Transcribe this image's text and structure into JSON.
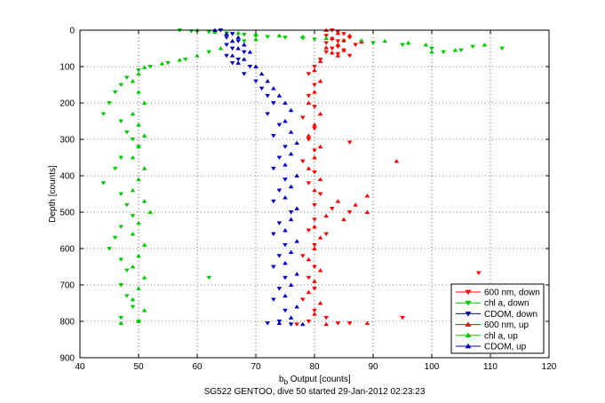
{
  "chart_data": {
    "type": "scatter",
    "title": "",
    "xlabel_main": "b",
    "xlabel_sub": "b",
    "xlabel_rest": " Output [counts]",
    "ylabel": "Depth [counts]",
    "caption": "SG522 GENTOO, dive 50 started 29-Jan-2012 02:23:23",
    "xlim": [
      40,
      120
    ],
    "ylim": [
      0,
      900
    ],
    "y_reversed": true,
    "grid": "dotted",
    "legend_position": "bottom-right",
    "xticks": [
      40,
      50,
      60,
      70,
      80,
      90,
      100,
      110,
      120
    ],
    "yticks": [
      0,
      100,
      200,
      300,
      400,
      500,
      600,
      700,
      800,
      900
    ],
    "series": [
      {
        "name": "600 nm, down",
        "color": "#ff0000",
        "marker": "triangle-down",
        "points": [
          [
            83,
            0
          ],
          [
            84,
            5
          ],
          [
            85,
            10
          ],
          [
            82,
            15
          ],
          [
            86,
            20
          ],
          [
            83,
            25
          ],
          [
            84,
            30
          ],
          [
            82,
            35
          ],
          [
            87,
            40
          ],
          [
            84,
            45
          ],
          [
            83,
            50
          ],
          [
            85,
            55
          ],
          [
            82,
            60
          ],
          [
            84,
            65
          ],
          [
            86,
            70
          ],
          [
            81,
            80
          ],
          [
            80,
            100
          ],
          [
            79,
            120
          ],
          [
            80,
            150
          ],
          [
            79,
            180
          ],
          [
            80,
            210
          ],
          [
            78,
            240
          ],
          [
            80,
            270
          ],
          [
            79,
            300
          ],
          [
            86,
            308
          ],
          [
            80,
            330
          ],
          [
            78,
            360
          ],
          [
            80,
            390
          ],
          [
            79,
            420
          ],
          [
            81,
            450
          ],
          [
            80,
            480
          ],
          [
            83,
            490
          ],
          [
            86,
            500
          ],
          [
            80,
            520
          ],
          [
            79,
            550
          ],
          [
            82,
            560
          ],
          [
            80,
            590
          ],
          [
            78,
            620
          ],
          [
            80,
            650
          ],
          [
            79,
            680
          ],
          [
            108,
            667
          ],
          [
            80,
            710
          ],
          [
            78,
            740
          ],
          [
            80,
            770
          ],
          [
            82,
            790
          ],
          [
            95,
            790
          ],
          [
            79,
            800
          ],
          [
            84,
            805
          ],
          [
            86,
            805
          ],
          [
            77,
            808
          ]
        ]
      },
      {
        "name": "chl a, down",
        "color": "#00cc00",
        "marker": "triangle-down",
        "points": [
          [
            57,
            0
          ],
          [
            59,
            3
          ],
          [
            62,
            5
          ],
          [
            65,
            8
          ],
          [
            68,
            12
          ],
          [
            70,
            15
          ],
          [
            72,
            18
          ],
          [
            75,
            20
          ],
          [
            78,
            22
          ],
          [
            80,
            25
          ],
          [
            85,
            30
          ],
          [
            90,
            35
          ],
          [
            95,
            40
          ],
          [
            100,
            50
          ],
          [
            105,
            55
          ],
          [
            112,
            50
          ],
          [
            107,
            45
          ],
          [
            102,
            60
          ],
          [
            68,
            30
          ],
          [
            62,
            60
          ],
          [
            58,
            80
          ],
          [
            55,
            90
          ],
          [
            52,
            100
          ],
          [
            50,
            110
          ],
          [
            48,
            130
          ],
          [
            47,
            150
          ],
          [
            46,
            170
          ],
          [
            45,
            200
          ],
          [
            44,
            230
          ],
          [
            47,
            250
          ],
          [
            48,
            280
          ],
          [
            49,
            300
          ],
          [
            50,
            320
          ],
          [
            47,
            350
          ],
          [
            46,
            380
          ],
          [
            44,
            420
          ],
          [
            47,
            450
          ],
          [
            48,
            480
          ],
          [
            49,
            510
          ],
          [
            47,
            540
          ],
          [
            46,
            570
          ],
          [
            45,
            600
          ],
          [
            47,
            630
          ],
          [
            48,
            660
          ],
          [
            62,
            680
          ],
          [
            47,
            700
          ],
          [
            48,
            730
          ],
          [
            49,
            760
          ],
          [
            47,
            790
          ],
          [
            50,
            800
          ]
        ]
      },
      {
        "name": "CDOM, down",
        "color": "#0000cc",
        "marker": "triangle-down",
        "points": [
          [
            64,
            0
          ],
          [
            66,
            10
          ],
          [
            65,
            20
          ],
          [
            67,
            30
          ],
          [
            65,
            40
          ],
          [
            66,
            50
          ],
          [
            68,
            60
          ],
          [
            65,
            70
          ],
          [
            67,
            80
          ],
          [
            66,
            90
          ],
          [
            69,
            100
          ],
          [
            68,
            120
          ],
          [
            70,
            140
          ],
          [
            71,
            160
          ],
          [
            72,
            180
          ],
          [
            73,
            200
          ],
          [
            72,
            230
          ],
          [
            74,
            260
          ],
          [
            73,
            290
          ],
          [
            75,
            320
          ],
          [
            74,
            350
          ],
          [
            73,
            380
          ],
          [
            75,
            410
          ],
          [
            74,
            440
          ],
          [
            73,
            470
          ],
          [
            76,
            500
          ],
          [
            74,
            530
          ],
          [
            73,
            560
          ],
          [
            75,
            590
          ],
          [
            74,
            620
          ],
          [
            73,
            650
          ],
          [
            75,
            680
          ],
          [
            74,
            710
          ],
          [
            73,
            740
          ],
          [
            75,
            770
          ],
          [
            74,
            800
          ],
          [
            72,
            805
          ],
          [
            76,
            808
          ]
        ]
      },
      {
        "name": "600 nm, up",
        "color": "#ff0000",
        "marker": "triangle-up",
        "points": [
          [
            82,
            0
          ],
          [
            84,
            8
          ],
          [
            86,
            15
          ],
          [
            83,
            22
          ],
          [
            85,
            28
          ],
          [
            88,
            32
          ],
          [
            84,
            40
          ],
          [
            82,
            48
          ],
          [
            85,
            55
          ],
          [
            83,
            62
          ],
          [
            84,
            70
          ],
          [
            81,
            85
          ],
          [
            80,
            110
          ],
          [
            81,
            140
          ],
          [
            80,
            170
          ],
          [
            79,
            200
          ],
          [
            81,
            230
          ],
          [
            80,
            260
          ],
          [
            79,
            290
          ],
          [
            81,
            320
          ],
          [
            80,
            350
          ],
          [
            94,
            360
          ],
          [
            79,
            380
          ],
          [
            81,
            410
          ],
          [
            80,
            440
          ],
          [
            89,
            455
          ],
          [
            84,
            470
          ],
          [
            87,
            480
          ],
          [
            89,
            500
          ],
          [
            82,
            510
          ],
          [
            85,
            520
          ],
          [
            80,
            540
          ],
          [
            81,
            570
          ],
          [
            80,
            600
          ],
          [
            79,
            630
          ],
          [
            81,
            660
          ],
          [
            80,
            690
          ],
          [
            79,
            720
          ],
          [
            81,
            750
          ],
          [
            80,
            780
          ],
          [
            89,
            805
          ],
          [
            82,
            808
          ]
        ]
      },
      {
        "name": "chl a, up",
        "color": "#00cc00",
        "marker": "triangle-up",
        "points": [
          [
            60,
            0
          ],
          [
            63,
            5
          ],
          [
            67,
            8
          ],
          [
            70,
            12
          ],
          [
            74,
            15
          ],
          [
            78,
            18
          ],
          [
            82,
            22
          ],
          [
            88,
            28
          ],
          [
            92,
            30
          ],
          [
            96,
            35
          ],
          [
            99,
            40
          ],
          [
            104,
            55
          ],
          [
            109,
            40
          ],
          [
            100,
            60
          ],
          [
            70,
            25
          ],
          [
            64,
            50
          ],
          [
            60,
            70
          ],
          [
            57,
            82
          ],
          [
            54,
            92
          ],
          [
            51,
            102
          ],
          [
            50,
            120
          ],
          [
            49,
            140
          ],
          [
            50,
            170
          ],
          [
            51,
            200
          ],
          [
            49,
            230
          ],
          [
            50,
            260
          ],
          [
            51,
            290
          ],
          [
            50,
            320
          ],
          [
            49,
            350
          ],
          [
            51,
            380
          ],
          [
            50,
            410
          ],
          [
            49,
            440
          ],
          [
            51,
            470
          ],
          [
            52,
            500
          ],
          [
            50,
            530
          ],
          [
            49,
            560
          ],
          [
            51,
            590
          ],
          [
            50,
            620
          ],
          [
            49,
            650
          ],
          [
            51,
            680
          ],
          [
            50,
            710
          ],
          [
            49,
            740
          ],
          [
            51,
            770
          ],
          [
            50,
            800
          ],
          [
            47,
            805
          ]
        ]
      },
      {
        "name": "CDOM, up",
        "color": "#0000cc",
        "marker": "triangle-up",
        "points": [
          [
            63,
            0
          ],
          [
            65,
            10
          ],
          [
            67,
            20
          ],
          [
            66,
            30
          ],
          [
            68,
            40
          ],
          [
            67,
            50
          ],
          [
            69,
            60
          ],
          [
            66,
            70
          ],
          [
            68,
            80
          ],
          [
            67,
            90
          ],
          [
            70,
            100
          ],
          [
            71,
            120
          ],
          [
            72,
            140
          ],
          [
            73,
            160
          ],
          [
            74,
            180
          ],
          [
            75,
            200
          ],
          [
            76,
            220
          ],
          [
            75,
            250
          ],
          [
            76,
            280
          ],
          [
            77,
            310
          ],
          [
            76,
            340
          ],
          [
            75,
            370
          ],
          [
            77,
            400
          ],
          [
            76,
            430
          ],
          [
            75,
            460
          ],
          [
            77,
            490
          ],
          [
            76,
            520
          ],
          [
            75,
            550
          ],
          [
            77,
            580
          ],
          [
            76,
            610
          ],
          [
            75,
            640
          ],
          [
            77,
            670
          ],
          [
            76,
            700
          ],
          [
            75,
            730
          ],
          [
            77,
            760
          ],
          [
            76,
            790
          ],
          [
            74,
            805
          ],
          [
            78,
            808
          ]
        ]
      }
    ]
  }
}
